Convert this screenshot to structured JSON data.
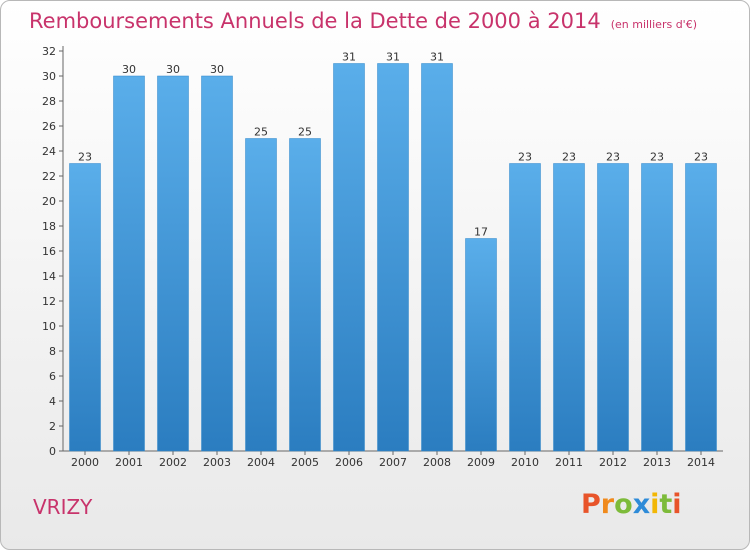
{
  "chart_data": {
    "type": "bar",
    "title": "Remboursements Annuels de la Dette de 2000 à 2014",
    "unit_label": "(en milliers d'€)",
    "categories": [
      "2000",
      "2001",
      "2002",
      "2003",
      "2004",
      "2005",
      "2006",
      "2007",
      "2008",
      "2009",
      "2010",
      "2011",
      "2012",
      "2013",
      "2014"
    ],
    "values": [
      23,
      30,
      30,
      30,
      25,
      25,
      31,
      31,
      31,
      17,
      23,
      23,
      23,
      23,
      23
    ],
    "ylim": [
      0,
      32
    ],
    "yticks": [
      0,
      2,
      4,
      6,
      8,
      10,
      12,
      14,
      16,
      18,
      20,
      22,
      24,
      26,
      28,
      30,
      32
    ],
    "xlabel": "",
    "ylabel": "",
    "grid": false,
    "bar_color": "#4a9fe0"
  },
  "place": "VRIZY",
  "logo": {
    "letters": [
      "P",
      "r",
      "o",
      "x",
      "i",
      "t",
      "i"
    ],
    "colors": [
      "#e8542a",
      "#f08a1c",
      "#7dbb3a",
      "#2e8bd8",
      "#f2b705",
      "#7dbb3a",
      "#e8542a"
    ]
  }
}
